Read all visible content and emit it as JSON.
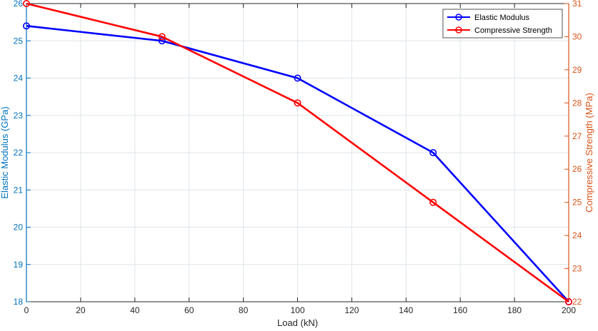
{
  "chart_data": {
    "type": "line",
    "xlabel": "Load (kN)",
    "ylabel_left": "Elastic Modulus (GPa)",
    "ylabel_right": "Compressive Strength (MPa)",
    "xlim": [
      0,
      200
    ],
    "ylim_left": [
      18,
      26
    ],
    "ylim_right": [
      22,
      31
    ],
    "x_ticks": [
      0,
      20,
      40,
      60,
      80,
      100,
      120,
      140,
      160,
      180,
      200
    ],
    "y_left_ticks": [
      18,
      19,
      20,
      21,
      22,
      23,
      24,
      25,
      26
    ],
    "y_right_ticks": [
      22,
      23,
      24,
      25,
      26,
      27,
      28,
      29,
      30,
      31
    ],
    "grid": true,
    "legend_position": "top-right",
    "x": [
      0,
      50,
      100,
      150,
      200
    ],
    "series": [
      {
        "name": "Elastic Modulus",
        "axis": "left",
        "values": [
          25.4,
          25.0,
          24.0,
          22.0,
          18.0
        ],
        "color": "#0000ff",
        "marker": "circle"
      },
      {
        "name": "Compressive Strength",
        "axis": "right",
        "values": [
          31.0,
          30.0,
          28.0,
          25.0,
          22.0
        ],
        "color": "#ff0000",
        "marker": "circle"
      }
    ],
    "colors": {
      "left_axis": "#0072bd",
      "right_axis": "#d95319",
      "grid": "#dfe6ea",
      "frame": "#262626"
    }
  }
}
